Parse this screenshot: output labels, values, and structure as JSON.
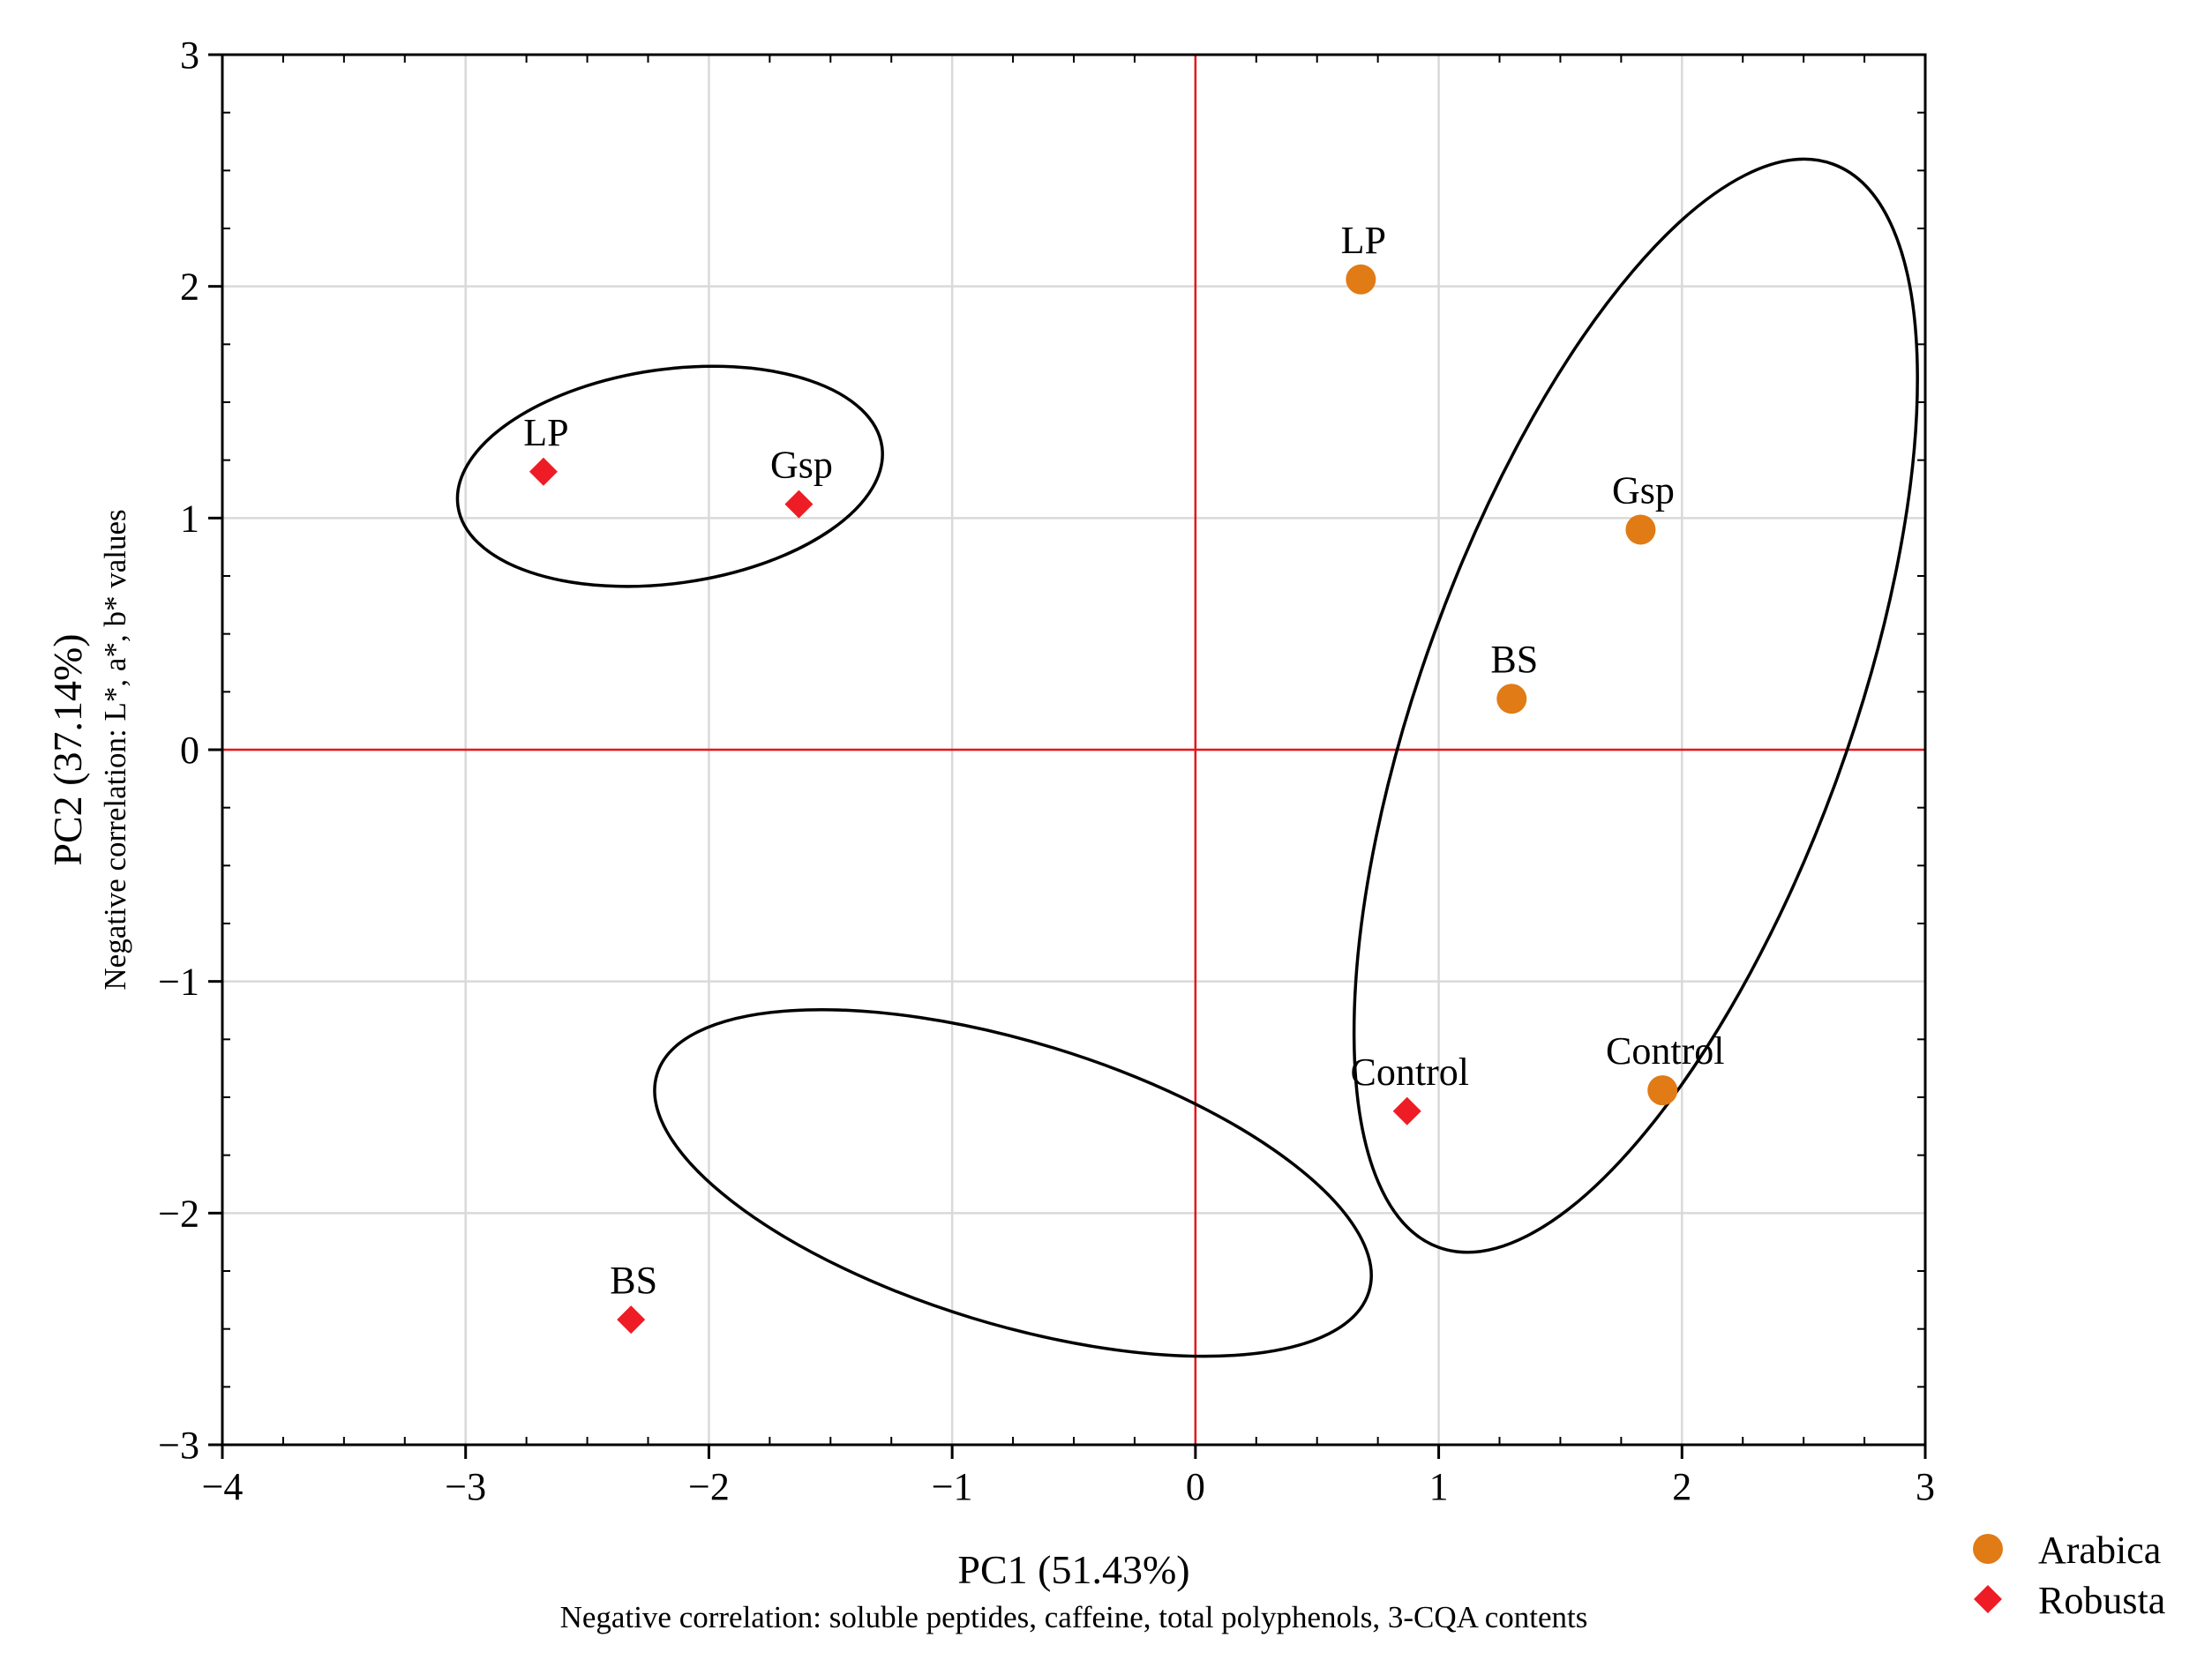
{
  "chart_data": {
    "type": "scatter",
    "title": "",
    "xlabel": "PC1 (51.43%)",
    "xlabel_sub": "Negative correlation: soluble peptides, caffeine, total polyphenols, 3-CQA contents",
    "ylabel": "PC2 (37.14%)",
    "ylabel_sub": "Negative correlation: L*, a*, b* values",
    "xlim": [
      -4,
      3
    ],
    "ylim": [
      -3,
      3
    ],
    "x_ticks": [
      -4,
      -3,
      -2,
      -1,
      0,
      1,
      2,
      3
    ],
    "y_ticks": [
      -3,
      -2,
      -1,
      0,
      1,
      2,
      3
    ],
    "x_tick_labels": [
      "−4",
      "−3",
      "−2",
      "−1",
      "0",
      "1",
      "2",
      "3"
    ],
    "y_tick_labels": [
      "−3",
      "−2",
      "−1",
      "0",
      "1",
      "2",
      "3"
    ],
    "grid": true,
    "reference_lines": {
      "x": 0,
      "y": 0,
      "color": "#e8141b"
    },
    "legend_position": "bottom-right outside",
    "series": [
      {
        "name": "Arabica",
        "marker": "circle",
        "color": "#e07b16",
        "points": [
          {
            "label": "LP",
            "x": 0.68,
            "y": 2.03
          },
          {
            "label": "Gsp",
            "x": 1.83,
            "y": 0.95
          },
          {
            "label": "BS",
            "x": 1.3,
            "y": 0.22
          },
          {
            "label": "Control",
            "x": 1.92,
            "y": -1.47
          }
        ]
      },
      {
        "name": "Robusta",
        "marker": "diamond",
        "color": "#ee1c25",
        "points": [
          {
            "label": "LP",
            "x": -2.68,
            "y": 1.2
          },
          {
            "label": "Gsp",
            "x": -1.63,
            "y": 1.06
          },
          {
            "label": "BS",
            "x": -2.32,
            "y": -2.46
          },
          {
            "label": "Control",
            "x": 0.87,
            "y": -1.56
          }
        ]
      }
    ],
    "confidence_ellipses": [
      {
        "group": "Robusta LP/Gsp",
        "cx": -2.16,
        "cy": 1.18,
        "rx": 0.88,
        "ry": 0.44,
        "angle_deg": -8
      },
      {
        "group": "Robusta BS/Control",
        "cx": -0.75,
        "cy": -1.87,
        "rx": 1.53,
        "ry": 0.58,
        "angle_deg": 17
      },
      {
        "group": "Arabica",
        "cx": 1.81,
        "cy": 0.19,
        "rx": 2.37,
        "ry": 0.88,
        "angle_deg": -70
      }
    ]
  }
}
